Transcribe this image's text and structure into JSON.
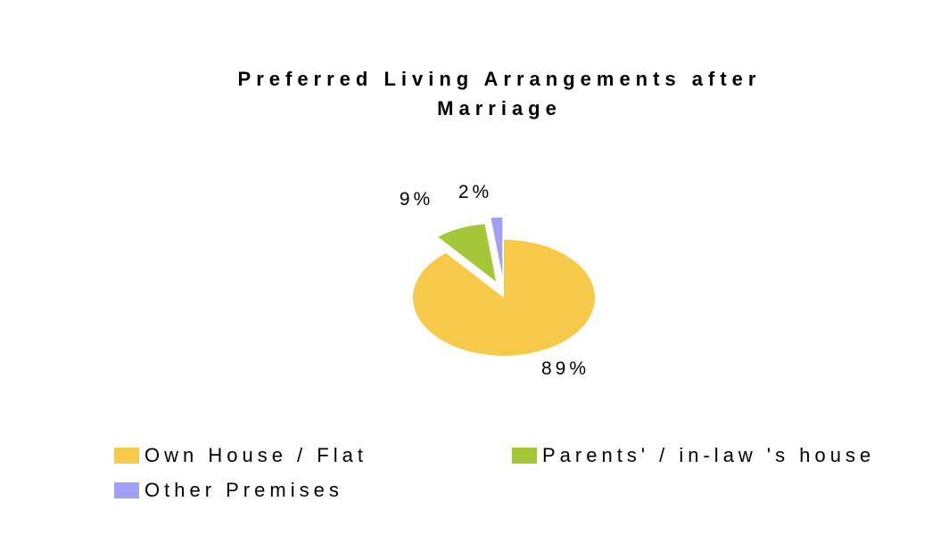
{
  "chart_data": {
    "type": "pie",
    "title_lines": [
      "Preferred Living Arrangements after",
      "Marriage"
    ],
    "slices": [
      {
        "label": "Own House / Flat",
        "value": 89,
        "display": "89%",
        "color": "#F7C948"
      },
      {
        "label": "Parents' / in-law 's house",
        "value": 9,
        "display": "9%",
        "color": "#A4C639"
      },
      {
        "label": "Other Premises",
        "value": 2,
        "display": "2%",
        "color": "#A0A0F5"
      }
    ],
    "legend_position": "bottom",
    "style": "3d-exploded"
  },
  "legend": {
    "own_house": "Own House / Flat",
    "parents": "Parents' / in-law 's house",
    "other": "Other Premises"
  }
}
